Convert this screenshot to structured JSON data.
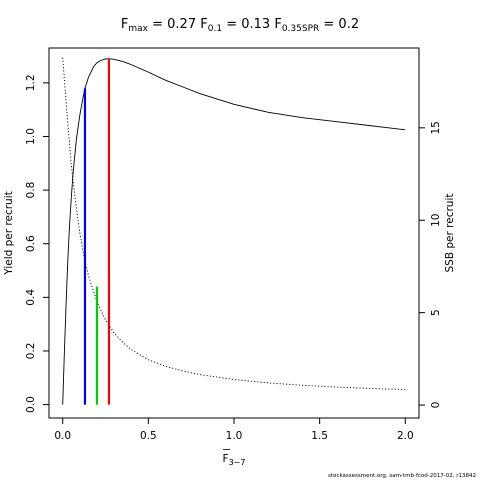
{
  "chart_data": {
    "type": "line",
    "title": {
      "fmax": {
        "symbol": "F",
        "sub": "max",
        "value": "0.27"
      },
      "f01": {
        "symbol": "F",
        "sub": "0.1",
        "value": "0.13"
      },
      "f035": {
        "symbol": "F",
        "sub": "0.35SPR",
        "value": "0.2"
      }
    },
    "xlabel": {
      "symbol": "F",
      "sub": "3−7"
    },
    "ylabel_left": "Yield per recruit",
    "ylabel_right": "SSB per recruit",
    "xlim": [
      -0.08,
      2.08
    ],
    "ylim_left": [
      -0.05,
      1.33
    ],
    "ylim_right": [
      -0.7,
      19.32
    ],
    "xticks": [
      "0.0",
      "0.5",
      "1.0",
      "1.5",
      "2.0"
    ],
    "yticks_left": [
      "0.0",
      "0.2",
      "0.4",
      "0.6",
      "0.8",
      "1.0",
      "1.2"
    ],
    "yticks_right": [
      "0",
      "5",
      "10",
      "15"
    ],
    "grid": false,
    "series": [
      {
        "axis": "left",
        "style": "solid",
        "color": "#000000",
        "x": [
          0.0,
          0.01,
          0.02,
          0.03,
          0.04,
          0.05,
          0.06,
          0.08,
          0.1,
          0.12,
          0.13,
          0.15,
          0.18,
          0.2,
          0.22,
          0.25,
          0.27,
          0.3,
          0.35,
          0.4,
          0.5,
          0.6,
          0.7,
          0.8,
          0.9,
          1.0,
          1.2,
          1.4,
          1.6,
          1.8,
          2.0
        ],
        "values": [
          0.0,
          0.2,
          0.38,
          0.54,
          0.67,
          0.77,
          0.86,
          0.99,
          1.08,
          1.15,
          1.18,
          1.22,
          1.26,
          1.275,
          1.283,
          1.289,
          1.29,
          1.288,
          1.28,
          1.268,
          1.24,
          1.21,
          1.185,
          1.16,
          1.14,
          1.12,
          1.09,
          1.07,
          1.055,
          1.04,
          1.025
        ]
      },
      {
        "axis": "right",
        "style": "dotted",
        "color": "#000000",
        "x": [
          0.0,
          0.025,
          0.05,
          0.075,
          0.1,
          0.125,
          0.15,
          0.2,
          0.25,
          0.3,
          0.35,
          0.4,
          0.5,
          0.6,
          0.7,
          0.8,
          1.0,
          1.2,
          1.4,
          1.6,
          1.8,
          2.0
        ],
        "values": [
          18.8,
          15.8,
          13.0,
          11.0,
          9.3,
          8.0,
          7.0,
          5.6,
          4.6,
          3.9,
          3.4,
          3.0,
          2.45,
          2.1,
          1.85,
          1.65,
          1.38,
          1.2,
          1.07,
          0.97,
          0.9,
          0.84
        ]
      }
    ],
    "reference_lines": [
      {
        "name": "F0.1",
        "x": 0.13,
        "y_from": 0.0,
        "y_to": 1.18,
        "color": "#0000ff"
      },
      {
        "name": "F0.35SPR",
        "x": 0.2,
        "y_from": 0.0,
        "y_to": 0.44,
        "color": "#00cd00"
      },
      {
        "name": "Fmax",
        "x": 0.27,
        "y_from": 0.0,
        "y_to": 1.29,
        "color": "#ff0000"
      }
    ],
    "footer": "stockassessment.org, sam-tmb-fcod-2017-02, r13842"
  }
}
